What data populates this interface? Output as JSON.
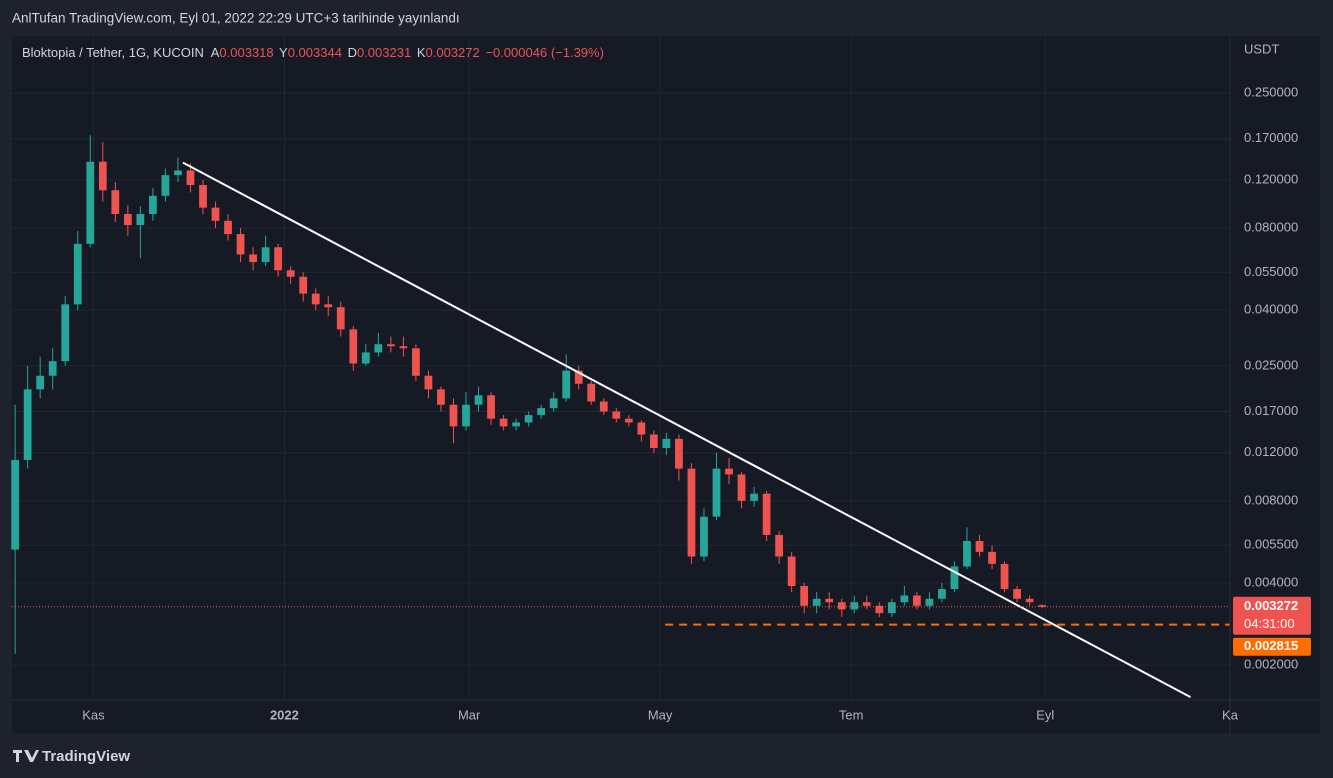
{
  "header": {
    "title": "AnlTufan TradingView.com, Eyl 01, 2022 22:29 UTC+3 tarihinde yayınlandı"
  },
  "footer": {
    "brand": "TradingView"
  },
  "chart_data": {
    "type": "candlestick",
    "legend": {
      "symbol": "Bloktopia / Tether, 1G, KUCOIN",
      "open_label": "A",
      "high_label": "Y",
      "low_label": "D",
      "close_label": "K",
      "change": {
        "value": -4.6e-05,
        "label": "−0.000046"
      },
      "change_pct": {
        "value": -1.39,
        "label": "(−1.39%)"
      }
    },
    "y_unit": "USDT",
    "log_scale": true,
    "grid": true,
    "up_color": "#26a69a",
    "down_color": "#ef5350",
    "xlim": [
      0,
      389
    ],
    "xticks": [
      {
        "value": 26,
        "label": "Kas"
      },
      {
        "value": 87,
        "label": "2022"
      },
      {
        "value": 146,
        "label": "Mar"
      },
      {
        "value": 207,
        "label": "May"
      },
      {
        "value": 268,
        "label": "Tem"
      },
      {
        "value": 330,
        "label": "Eyl"
      },
      {
        "value": 389,
        "label": "Ka"
      }
    ],
    "ylim": [
      0.00149,
      0.391
    ],
    "yticks": [
      {
        "value": 0.25,
        "label": "0.250000"
      },
      {
        "value": 0.17,
        "label": "0.170000"
      },
      {
        "value": 0.12,
        "label": "0.120000"
      },
      {
        "value": 0.08,
        "label": "0.080000"
      },
      {
        "value": 0.055,
        "label": "0.055000"
      },
      {
        "value": 0.04,
        "label": "0.040000"
      },
      {
        "value": 0.025,
        "label": "0.025000"
      },
      {
        "value": 0.017,
        "label": "0.017000"
      },
      {
        "value": 0.012,
        "label": "0.012000"
      },
      {
        "value": 0.008,
        "label": "0.008000"
      },
      {
        "value": 0.0055,
        "label": "0.005500"
      },
      {
        "value": 0.004,
        "label": "0.004000"
      },
      {
        "value": 0.002,
        "label": "0.002000"
      }
    ],
    "x": [
      1,
      5,
      9,
      13,
      17,
      21,
      25,
      29,
      33,
      37,
      41,
      45,
      49,
      53,
      57,
      61,
      65,
      69,
      73,
      77,
      81,
      85,
      89,
      93,
      97,
      101,
      105,
      109,
      113,
      117,
      121,
      125,
      129,
      133,
      137,
      141,
      145,
      149,
      153,
      157,
      161,
      165,
      169,
      173,
      177,
      181,
      185,
      189,
      193,
      197,
      201,
      205,
      209,
      213,
      217,
      221,
      225,
      229,
      233,
      237,
      241,
      245,
      249,
      253,
      257,
      261,
      265,
      269,
      273,
      277,
      281,
      285,
      289,
      293,
      297,
      301,
      305,
      309,
      313,
      317,
      321,
      325,
      329
    ],
    "open": [
      0.0053,
      0.0113,
      0.0205,
      0.023,
      0.026,
      0.042,
      0.07,
      0.14,
      0.11,
      0.09,
      0.082,
      0.09,
      0.105,
      0.125,
      0.13,
      0.115,
      0.095,
      0.085,
      0.076,
      0.064,
      0.06,
      0.068,
      0.056,
      0.053,
      0.046,
      0.042,
      0.041,
      0.034,
      0.0255,
      0.028,
      0.03,
      0.0295,
      0.029,
      0.023,
      0.0205,
      0.018,
      0.015,
      0.018,
      0.0195,
      0.016,
      0.015,
      0.0155,
      0.0165,
      0.0175,
      0.019,
      0.024,
      0.0215,
      0.0185,
      0.017,
      0.016,
      0.0155,
      0.014,
      0.0125,
      0.0135,
      0.0105,
      0.005,
      0.007,
      0.0105,
      0.01,
      0.008,
      0.0085,
      0.006,
      0.005,
      0.0039,
      0.0033,
      0.0035,
      0.0034,
      0.0032,
      0.0034,
      0.0033,
      0.0031,
      0.0034,
      0.0036,
      0.0033,
      0.0035,
      0.0038,
      0.0046,
      0.0057,
      0.0052,
      0.0047,
      0.0038,
      0.0035,
      0.003318
    ],
    "high": [
      0.018,
      0.025,
      0.027,
      0.029,
      0.045,
      0.078,
      0.175,
      0.165,
      0.118,
      0.097,
      0.096,
      0.112,
      0.132,
      0.145,
      0.138,
      0.12,
      0.1,
      0.09,
      0.08,
      0.068,
      0.075,
      0.07,
      0.058,
      0.055,
      0.048,
      0.045,
      0.043,
      0.035,
      0.03,
      0.033,
      0.032,
      0.032,
      0.03,
      0.024,
      0.021,
      0.019,
      0.02,
      0.021,
      0.02,
      0.0165,
      0.016,
      0.017,
      0.018,
      0.02,
      0.0275,
      0.025,
      0.022,
      0.019,
      0.0175,
      0.0165,
      0.0158,
      0.0145,
      0.0142,
      0.014,
      0.011,
      0.0075,
      0.012,
      0.0115,
      0.0102,
      0.009,
      0.0087,
      0.0062,
      0.0052,
      0.004,
      0.0037,
      0.0037,
      0.0035,
      0.0036,
      0.0036,
      0.0034,
      0.0035,
      0.0039,
      0.0037,
      0.0037,
      0.004,
      0.0048,
      0.0064,
      0.006,
      0.0055,
      0.0048,
      0.0039,
      0.0036,
      0.003344
    ],
    "low": [
      0.0022,
      0.0105,
      0.019,
      0.0205,
      0.025,
      0.04,
      0.068,
      0.1,
      0.084,
      0.075,
      0.062,
      0.085,
      0.1,
      0.118,
      0.108,
      0.09,
      0.08,
      0.072,
      0.06,
      0.056,
      0.058,
      0.053,
      0.05,
      0.043,
      0.04,
      0.038,
      0.032,
      0.024,
      0.025,
      0.027,
      0.028,
      0.027,
      0.022,
      0.019,
      0.017,
      0.013,
      0.0145,
      0.017,
      0.0152,
      0.0145,
      0.0145,
      0.015,
      0.016,
      0.017,
      0.0185,
      0.0205,
      0.018,
      0.0165,
      0.0155,
      0.015,
      0.0132,
      0.012,
      0.0118,
      0.0095,
      0.0047,
      0.0048,
      0.0068,
      0.0092,
      0.0075,
      0.0076,
      0.0057,
      0.0047,
      0.0037,
      0.0031,
      0.0031,
      0.0032,
      0.003,
      0.0031,
      0.0032,
      0.003,
      0.003,
      0.0033,
      0.0032,
      0.0032,
      0.0034,
      0.0037,
      0.0045,
      0.005,
      0.0045,
      0.0037,
      0.0034,
      0.0033,
      0.003231
    ],
    "close": [
      0.0113,
      0.0205,
      0.023,
      0.026,
      0.042,
      0.07,
      0.14,
      0.11,
      0.09,
      0.082,
      0.09,
      0.105,
      0.125,
      0.13,
      0.115,
      0.095,
      0.085,
      0.076,
      0.064,
      0.06,
      0.068,
      0.056,
      0.053,
      0.046,
      0.042,
      0.041,
      0.034,
      0.0255,
      0.028,
      0.03,
      0.0295,
      0.029,
      0.023,
      0.0205,
      0.018,
      0.015,
      0.018,
      0.0195,
      0.016,
      0.015,
      0.0155,
      0.0165,
      0.0175,
      0.019,
      0.024,
      0.0215,
      0.0185,
      0.017,
      0.016,
      0.0155,
      0.014,
      0.0125,
      0.0135,
      0.0105,
      0.005,
      0.007,
      0.0105,
      0.01,
      0.008,
      0.0085,
      0.006,
      0.005,
      0.0039,
      0.0033,
      0.0035,
      0.0034,
      0.0032,
      0.0034,
      0.0033,
      0.0031,
      0.0034,
      0.0036,
      0.0033,
      0.0035,
      0.0038,
      0.0046,
      0.0057,
      0.0052,
      0.0047,
      0.0038,
      0.0035,
      0.0034,
      0.003272
    ],
    "countdown": "04:31:00",
    "trendline": {
      "x": [
        54.6,
        376.4
      ],
      "y": [
        0.1389,
        0.001527
      ],
      "color": "#ffffff"
    },
    "horizontal_line": {
      "value": 0.002815,
      "x_start": 208.6,
      "color": "#ff6d00"
    }
  }
}
